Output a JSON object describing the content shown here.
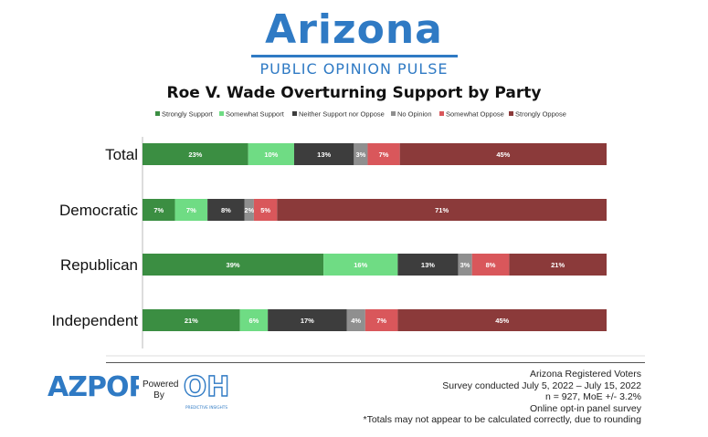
{
  "brand": {
    "title": "Arizona",
    "subtitle": "PUBLIC OPINION PULSE"
  },
  "colors": {
    "brand_blue": "#2f7ac4",
    "strongly_support": "#3b8e42",
    "somewhat_support": "#6fdc84",
    "neither": "#3d3d3d",
    "no_opinion": "#8f8f8f",
    "somewhat_oppose": "#d9575b",
    "strongly_oppose": "#8b3a3a"
  },
  "chart_data": {
    "type": "bar",
    "orientation": "horizontal",
    "stacked": true,
    "title": "Roe V. Wade Overturning Support by Party",
    "categories": [
      "Total",
      "Democratic",
      "Republican",
      "Independent"
    ],
    "legend_position": "top",
    "series": [
      {
        "name": "Strongly Support",
        "color": "#3b8e42",
        "values": [
          23,
          7,
          39,
          21
        ],
        "labels": [
          "23%",
          "7%",
          "39%",
          "21%"
        ]
      },
      {
        "name": "Somewhat Support",
        "color": "#6fdc84",
        "values": [
          10,
          7,
          16,
          6
        ],
        "labels": [
          "10%",
          "7%",
          "16%",
          "6%"
        ]
      },
      {
        "name": "Neither Support nor Oppose",
        "color": "#3d3d3d",
        "values": [
          13,
          8,
          13,
          17
        ],
        "labels": [
          "13%",
          "8%",
          "13%",
          "17%"
        ]
      },
      {
        "name": "No Opinion",
        "color": "#8f8f8f",
        "values": [
          3,
          2,
          3,
          4
        ],
        "labels": [
          "3%",
          "2%",
          "3%",
          "4%"
        ]
      },
      {
        "name": "Somewhat Oppose",
        "color": "#d9575b",
        "values": [
          7,
          5,
          8,
          7
        ],
        "labels": [
          "7%",
          "5%",
          "8%",
          "7%"
        ]
      },
      {
        "name": "Strongly Oppose",
        "color": "#8b3a3a",
        "values": [
          45,
          71,
          21,
          45
        ],
        "labels": [
          "45%",
          "71%",
          "21%",
          "45%"
        ]
      }
    ]
  },
  "footer": {
    "logo_text": "AZPOP",
    "powered_line1": "Powered",
    "powered_line2": "By",
    "partner_logo_text": "OH",
    "partner_logo_caption": "PREDICTIVE INSIGHTS",
    "notes": [
      "Arizona Registered Voters",
      "Survey conducted July 5, 2022 – July 15, 2022",
      "n = 927, MoE +/- 3.2%",
      "Online opt-in panel survey",
      "*Totals may not appear to be calculated correctly, due to rounding"
    ]
  }
}
